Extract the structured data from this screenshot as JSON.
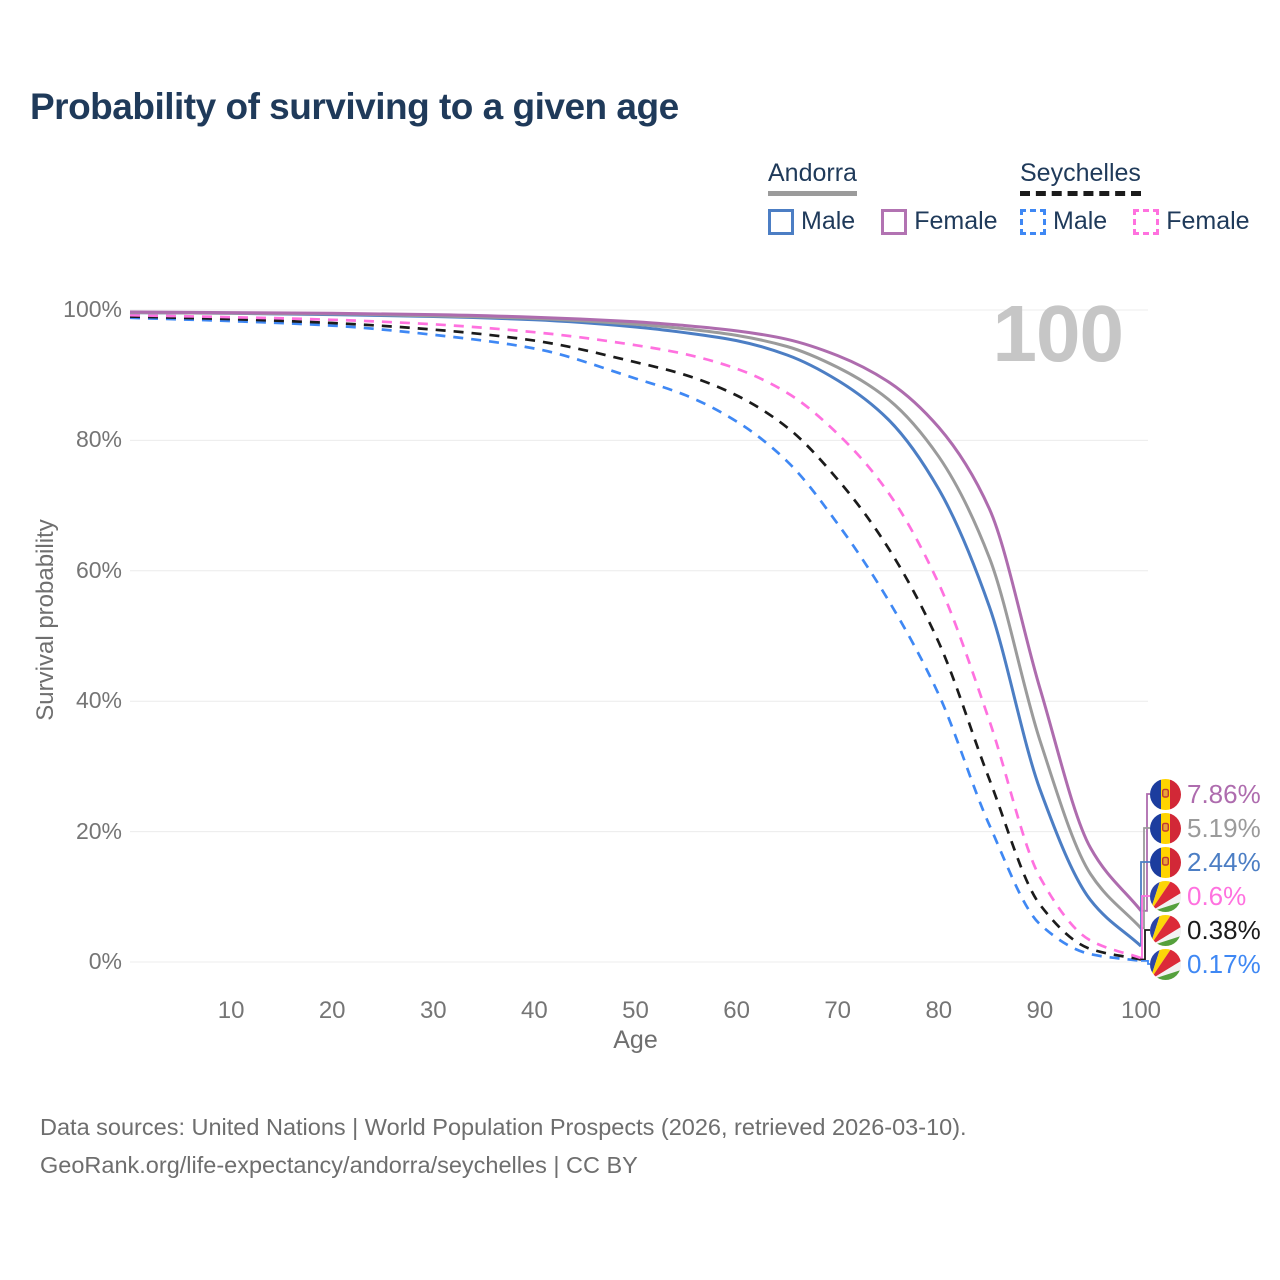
{
  "title": "Probability of surviving to a given age",
  "watermark": "100",
  "legend": {
    "groups": [
      {
        "label": "Andorra",
        "line_style": "solid",
        "line_color": "#9b9b9b",
        "items": [
          {
            "label": "Male",
            "swatch_color": "#4c7ec4",
            "swatch_style": "solid"
          },
          {
            "label": "Female",
            "swatch_color": "#b273b2",
            "swatch_style": "solid"
          }
        ]
      },
      {
        "label": "Seychelles",
        "line_style": "dashed",
        "line_color": "#1b1b1b",
        "items": [
          {
            "label": "Male",
            "swatch_color": "#3f88f4",
            "swatch_style": "dashed"
          },
          {
            "label": "Female",
            "swatch_color": "#ff71df",
            "swatch_style": "dashed"
          }
        ]
      }
    ]
  },
  "y_axis": {
    "label": "Survival probability",
    "ticks": [
      "100%",
      "80%",
      "60%",
      "40%",
      "20%",
      "0%"
    ]
  },
  "x_axis": {
    "label": "Age",
    "ticks": [
      10,
      20,
      30,
      40,
      50,
      60,
      70,
      80,
      90,
      100
    ]
  },
  "end_labels": [
    {
      "series": "Andorra Female",
      "flag": "andorra",
      "value": "7.86%",
      "color": "#ae6cae"
    },
    {
      "series": "Andorra Both sexes",
      "flag": "andorra",
      "value": "5.19%",
      "color": "#9b9b9b"
    },
    {
      "series": "Andorra Male",
      "flag": "andorra",
      "value": "2.44%",
      "color": "#4c7ec4"
    },
    {
      "series": "Seychelles Female",
      "flag": "seychelles",
      "value": "0.6%",
      "color": "#ff71df"
    },
    {
      "series": "Seychelles Both sexes",
      "flag": "seychelles",
      "value": "0.38%",
      "color": "#1b1b1b"
    },
    {
      "series": "Seychelles Male",
      "flag": "seychelles",
      "value": "0.17%",
      "color": "#3f88f4"
    }
  ],
  "footer": {
    "line1": "Data sources: United Nations | World Population Prospects (2026, retrieved 2026-03-10).",
    "line2": "GeoRank.org/life-expectancy/andorra/seychelles | CC BY"
  },
  "chart_data": {
    "type": "line",
    "title": "Probability of surviving to a given age",
    "xlabel": "Age",
    "ylabel": "Survival probability",
    "xlim": [
      0,
      100
    ],
    "ylim": [
      0,
      100
    ],
    "grid": "horizontal",
    "hover_age": 100,
    "x": [
      0,
      10,
      20,
      30,
      40,
      50,
      55,
      60,
      65,
      70,
      75,
      80,
      85,
      90,
      95,
      100
    ],
    "series": [
      {
        "name": "Andorra Female",
        "country": "Andorra",
        "sex": "Female",
        "style": "solid",
        "color": "#ae6cae",
        "values": [
          99.7,
          99.6,
          99.5,
          99.3,
          98.9,
          98.2,
          97.6,
          96.8,
          95.5,
          93.0,
          89.0,
          82.0,
          69.5,
          42.0,
          17.5,
          7.86
        ],
        "survival_at_100": "7.86%"
      },
      {
        "name": "Andorra Both sexes",
        "country": "Andorra",
        "sex": "Both",
        "style": "solid",
        "color": "#9b9b9b",
        "values": [
          99.6,
          99.5,
          99.4,
          99.1,
          98.7,
          97.8,
          97.1,
          96.1,
          94.4,
          91.2,
          86.3,
          77.5,
          62.0,
          34.0,
          13.5,
          5.19
        ],
        "survival_at_100": "5.19%"
      },
      {
        "name": "Andorra Male",
        "country": "Andorra",
        "sex": "Male",
        "style": "solid",
        "color": "#4c7ec4",
        "values": [
          99.6,
          99.5,
          99.3,
          99.0,
          98.5,
          97.4,
          96.5,
          95.3,
          93.1,
          89.2,
          83.2,
          72.5,
          54.5,
          26.5,
          9.5,
          2.44
        ],
        "survival_at_100": "2.44%"
      },
      {
        "name": "Seychelles Female",
        "country": "Seychelles",
        "sex": "Female",
        "style": "dashed",
        "color": "#ff71df",
        "values": [
          99.2,
          98.9,
          98.5,
          97.8,
          96.6,
          94.6,
          93.2,
          91.0,
          87.3,
          81.0,
          72.0,
          58.0,
          37.0,
          13.0,
          3.3,
          0.6
        ],
        "survival_at_100": "0.6%"
      },
      {
        "name": "Seychelles Both sexes",
        "country": "Seychelles",
        "sex": "Both",
        "style": "dashed",
        "color": "#1b1b1b",
        "values": [
          99.0,
          98.6,
          98.0,
          97.0,
          95.3,
          92.0,
          90.0,
          86.9,
          82.0,
          74.0,
          63.5,
          49.0,
          28.0,
          8.8,
          2.0,
          0.38
        ],
        "survival_at_100": "0.38%"
      },
      {
        "name": "Seychelles Male",
        "country": "Seychelles",
        "sex": "Male",
        "style": "dashed",
        "color": "#3f88f4",
        "values": [
          98.8,
          98.3,
          97.6,
          96.2,
          94.1,
          89.5,
          86.9,
          82.9,
          76.8,
          67.2,
          55.5,
          41.0,
          21.0,
          5.8,
          1.2,
          0.17
        ],
        "survival_at_100": "0.17%"
      }
    ]
  }
}
